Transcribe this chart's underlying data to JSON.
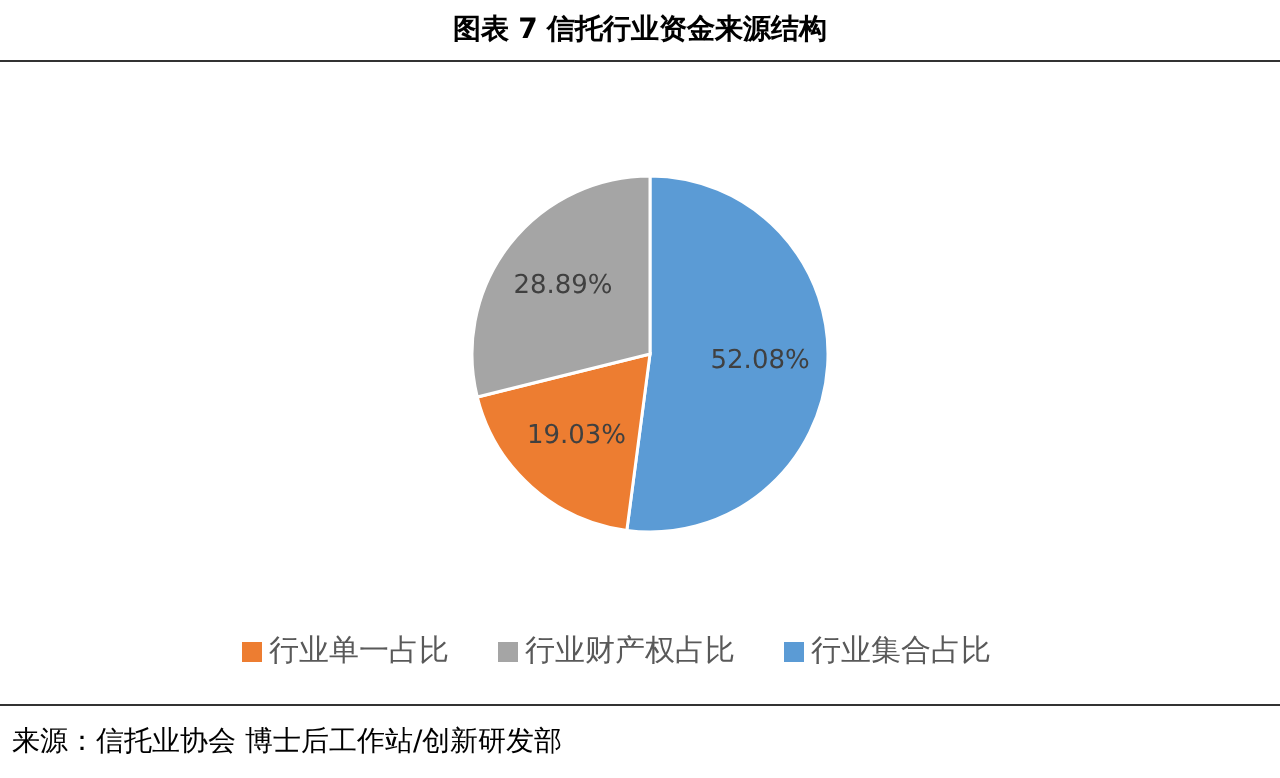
{
  "chart_data": {
    "type": "pie",
    "title": "图表 7   信托行业资金来源结构",
    "categories": [
      "行业集合占比",
      "行业单一占比",
      "行业财产权占比"
    ],
    "values": [
      52.08,
      19.03,
      28.89
    ],
    "value_labels": [
      "52.08%",
      "19.03%",
      "28.89%"
    ],
    "colors": [
      "#5b9bd5",
      "#ed7d31",
      "#a5a5a5"
    ],
    "legend": "bottom",
    "annotations": [
      "来源：信托业协会 博士后工作站/创新研发部"
    ]
  }
}
